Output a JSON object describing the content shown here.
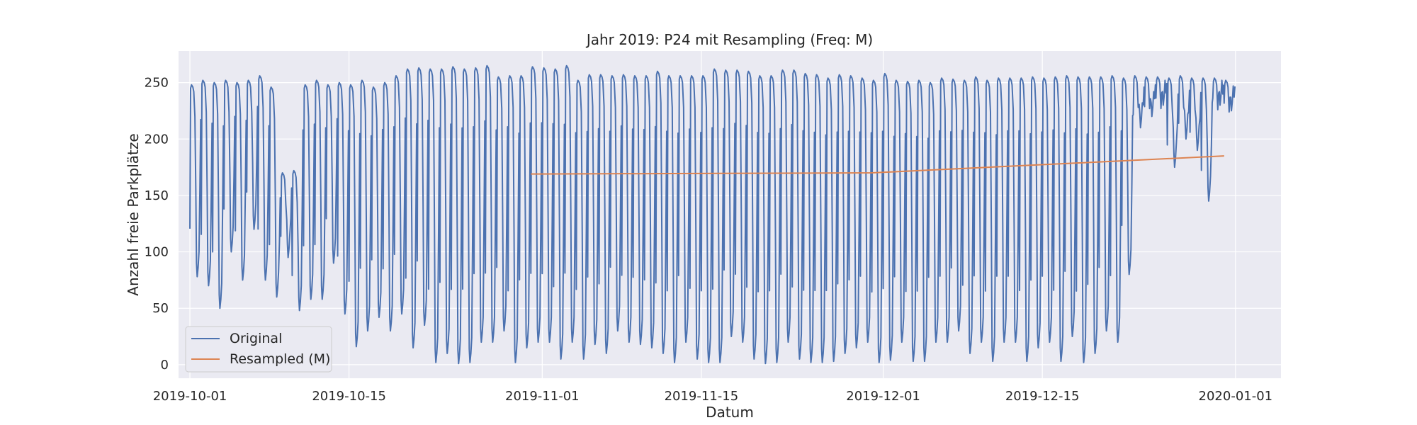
{
  "chart_data": {
    "type": "line",
    "title": "Jahr 2019: P24 mit Resampling (Freq: M)",
    "xlabel": "Datum",
    "ylabel": "Anzahl freie Parkplätze",
    "x_ticks": [
      "2019-10-01",
      "2019-10-15",
      "2019-11-01",
      "2019-11-15",
      "2019-12-01",
      "2019-12-15",
      "2020-01-01"
    ],
    "y_ticks": [
      0,
      50,
      100,
      150,
      200,
      250
    ],
    "xlim": [
      "2019-09-30",
      "2020-01-05"
    ],
    "ylim": [
      -12,
      278
    ],
    "grid": true,
    "legend": "lower-left",
    "colors": {
      "Original": "#4c72b0",
      "Resampled (M)": "#dd8452",
      "background": "#eaeaf2",
      "grid": "#ffffff"
    },
    "series": [
      {
        "name": "Original",
        "note_kind": "daily-cycle",
        "x_start": "2019-10-01",
        "x_end": "2019-12-31",
        "day_highs": [
          248,
          252,
          250,
          252,
          250,
          252,
          256,
          246,
          170,
          172,
          248,
          252,
          248,
          250,
          248,
          252,
          246,
          250,
          256,
          262,
          263,
          262,
          262,
          264,
          262,
          263,
          265,
          255,
          256,
          256,
          264,
          263,
          262,
          265,
          252,
          257,
          257,
          256,
          257,
          256,
          256,
          260,
          256,
          256,
          256,
          256,
          262,
          261,
          261,
          260,
          256,
          256,
          261,
          261,
          258,
          257,
          254,
          257,
          256,
          254,
          252,
          258,
          252,
          251,
          252,
          250,
          254,
          253,
          252,
          255,
          252,
          254,
          254,
          254,
          255,
          254,
          255,
          256,
          255,
          255,
          255,
          256,
          254,
          256,
          255,
          255,
          254,
          256,
          254,
          254,
          254,
          252
        ],
        "day_lows": [
          78,
          70,
          50,
          100,
          75,
          120,
          75,
          60,
          95,
          48,
          58,
          58,
          90,
          45,
          16,
          30,
          42,
          30,
          45,
          15,
          35,
          2,
          10,
          1,
          2,
          20,
          20,
          30,
          2,
          15,
          20,
          20,
          5,
          20,
          5,
          18,
          10,
          30,
          20,
          18,
          15,
          10,
          2,
          20,
          5,
          2,
          2,
          25,
          20,
          5,
          1,
          2,
          20,
          5,
          2,
          2,
          3,
          10,
          15,
          20,
          2,
          4,
          20,
          3,
          3,
          20,
          20,
          30,
          10,
          20,
          3,
          20,
          20,
          3,
          15,
          20,
          3,
          25,
          2,
          10,
          30,
          20,
          80,
          210,
          220,
          230,
          175,
          200,
          190,
          145,
          230,
          225
        ]
      },
      {
        "name": "Resampled (M)",
        "x": [
          "2019-10-31",
          "2019-11-30",
          "2019-12-31"
        ],
        "y": [
          169,
          170,
          185
        ]
      }
    ]
  }
}
